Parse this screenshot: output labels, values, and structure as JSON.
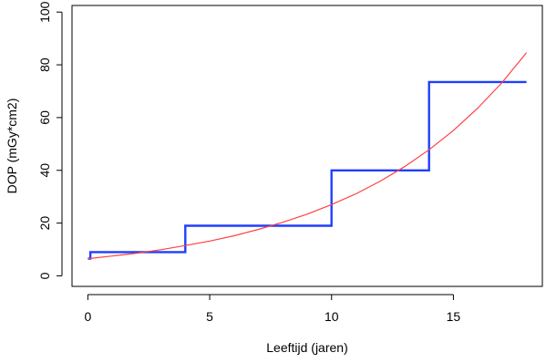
{
  "chart_data": {
    "type": "line",
    "title": "",
    "xlabel": "Leeftijd (jaren)",
    "ylabel": "DOP (mGy*cm2)",
    "xlim": [
      -0.65,
      18.65
    ],
    "ylim": [
      -4,
      102.5
    ],
    "x_ticks": [
      0,
      5,
      10,
      15
    ],
    "y_ticks": [
      0,
      20,
      40,
      60,
      80,
      100
    ],
    "grid": false,
    "legend": "none",
    "series": [
      {
        "kind": "step",
        "color": "#1f3fff",
        "points": [
          [
            0,
            6.5
          ],
          [
            0.1,
            6.5
          ],
          [
            0.1,
            9
          ],
          [
            4,
            9
          ],
          [
            4,
            19
          ],
          [
            10,
            19
          ],
          [
            10,
            40
          ],
          [
            14,
            40
          ],
          [
            14,
            73.5
          ],
          [
            18,
            73.5
          ]
        ]
      },
      {
        "kind": "curve",
        "color": "#ff4040",
        "x": [
          0,
          1,
          2,
          3,
          4,
          5,
          6,
          7,
          8,
          9,
          10,
          11,
          12,
          13,
          14,
          15,
          16,
          17,
          18
        ],
        "values": [
          6.5,
          7.5,
          8.6,
          9.9,
          11.5,
          13.2,
          15.2,
          17.6,
          20.3,
          23.4,
          27.0,
          31.1,
          35.9,
          41.4,
          47.8,
          55.1,
          63.6,
          73.3,
          84.6
        ]
      }
    ]
  }
}
